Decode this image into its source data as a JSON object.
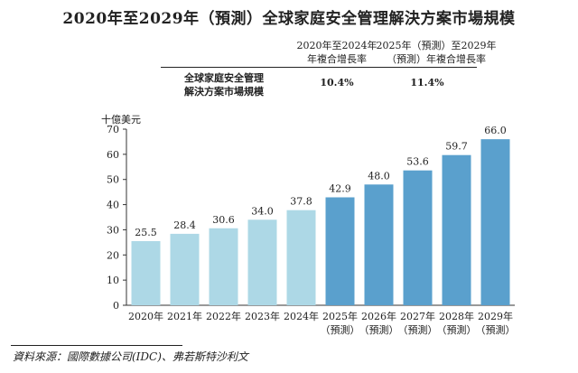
{
  "title": "2020年至2029年（預測）全球家庭安全管理解決方案市場規模",
  "cagr": {
    "header1_line1": "2020年至2024年",
    "header1_line2": "年複合增長率",
    "header2_line1": "2025年（預測）至2029年",
    "header2_line2": "（預測）年複合增長率",
    "row_label_line1": "全球家庭安全管理",
    "row_label_line2": "解決方案市場規模",
    "value1": "10.4%",
    "value2": "11.4%"
  },
  "source": "資料來源：國際數據公司(IDC)、弗若斯特沙利文",
  "colors": {
    "historical": "#add8e6",
    "forecast": "#5aa0cd"
  },
  "chart_data": {
    "type": "bar",
    "ylabel": "十億美元",
    "ylim": [
      0,
      70
    ],
    "yticks": [
      0,
      10,
      20,
      30,
      40,
      50,
      60,
      70
    ],
    "grid": false,
    "categories": [
      [
        "2020年"
      ],
      [
        "2021年"
      ],
      [
        "2022年"
      ],
      [
        "2023年"
      ],
      [
        "2024年"
      ],
      [
        "2025年",
        "（預測）"
      ],
      [
        "2026年",
        "（預測）"
      ],
      [
        "2027年",
        "（預測）"
      ],
      [
        "2028年",
        "（預測）"
      ],
      [
        "2029年",
        "（預測）"
      ]
    ],
    "values": [
      25.5,
      28.4,
      30.6,
      34.0,
      37.8,
      42.9,
      48.0,
      53.6,
      59.7,
      66.0
    ],
    "value_labels": [
      "25.5",
      "28.4",
      "30.6",
      "34.0",
      "37.8",
      "42.9",
      "48.0",
      "53.6",
      "59.7",
      "66.0"
    ],
    "forecast": [
      false,
      false,
      false,
      false,
      false,
      true,
      true,
      true,
      true,
      true
    ]
  }
}
